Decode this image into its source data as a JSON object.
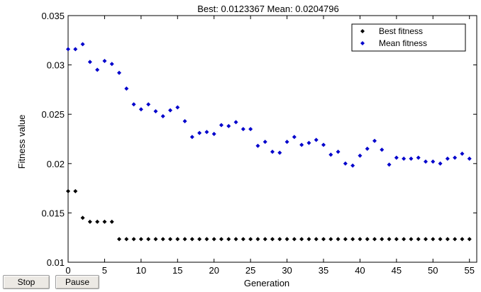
{
  "chart_data": {
    "type": "scatter",
    "title": "Best: 0.0123367 Mean: 0.0204796",
    "xlabel": "Generation",
    "ylabel": "Fitness value",
    "xlim": [
      0,
      56
    ],
    "ylim": [
      0.01,
      0.035
    ],
    "x_ticks": [
      0,
      5,
      10,
      15,
      20,
      25,
      30,
      35,
      40,
      45,
      50,
      55
    ],
    "y_ticks": [
      0.01,
      0.015,
      0.02,
      0.025,
      0.03,
      0.035
    ],
    "y_tick_labels": [
      "0.01",
      "0.015",
      "0.02",
      "0.025",
      "0.03",
      "0.035"
    ],
    "grid": false,
    "legend_position": "top-right",
    "series": [
      {
        "name": "Best fitness",
        "color": "#000000",
        "x": [
          0,
          1,
          2,
          3,
          4,
          5,
          6,
          7,
          8,
          9,
          10,
          11,
          12,
          13,
          14,
          15,
          16,
          17,
          18,
          19,
          20,
          21,
          22,
          23,
          24,
          25,
          26,
          27,
          28,
          29,
          30,
          31,
          32,
          33,
          34,
          35,
          36,
          37,
          38,
          39,
          40,
          41,
          42,
          43,
          44,
          45,
          46,
          47,
          48,
          49,
          50,
          51,
          52,
          53,
          54,
          55
        ],
        "values": [
          0.0172,
          0.0172,
          0.0145,
          0.0141,
          0.0141,
          0.0141,
          0.0141,
          0.01234,
          0.01234,
          0.01234,
          0.01234,
          0.01234,
          0.01234,
          0.01234,
          0.01234,
          0.01234,
          0.01234,
          0.01234,
          0.01234,
          0.01234,
          0.01234,
          0.01234,
          0.01234,
          0.01234,
          0.01234,
          0.01234,
          0.01234,
          0.01234,
          0.01234,
          0.01234,
          0.01234,
          0.01234,
          0.01234,
          0.01234,
          0.01234,
          0.01234,
          0.01234,
          0.01234,
          0.01234,
          0.01234,
          0.01234,
          0.01234,
          0.01234,
          0.01234,
          0.01234,
          0.01234,
          0.01234,
          0.01234,
          0.01234,
          0.01234,
          0.01234,
          0.01234,
          0.01234,
          0.01234,
          0.01234,
          0.01234
        ]
      },
      {
        "name": "Mean fitness",
        "color": "#0000cc",
        "x": [
          0,
          1,
          2,
          3,
          4,
          5,
          6,
          7,
          8,
          9,
          10,
          11,
          12,
          13,
          14,
          15,
          16,
          17,
          18,
          19,
          20,
          21,
          22,
          23,
          24,
          25,
          26,
          27,
          28,
          29,
          30,
          31,
          32,
          33,
          34,
          35,
          36,
          37,
          38,
          39,
          40,
          41,
          42,
          43,
          44,
          45,
          46,
          47,
          48,
          49,
          50,
          51,
          52,
          53,
          54,
          55
        ],
        "values": [
          0.0316,
          0.0316,
          0.0321,
          0.0303,
          0.0295,
          0.0304,
          0.0301,
          0.0292,
          0.0276,
          0.026,
          0.0255,
          0.026,
          0.0253,
          0.0248,
          0.0254,
          0.0257,
          0.0243,
          0.0227,
          0.0231,
          0.0232,
          0.023,
          0.0239,
          0.0238,
          0.0242,
          0.0235,
          0.0235,
          0.0218,
          0.0222,
          0.0212,
          0.0211,
          0.0222,
          0.0227,
          0.0219,
          0.0221,
          0.0224,
          0.0219,
          0.0209,
          0.0212,
          0.02,
          0.0198,
          0.0208,
          0.0215,
          0.0223,
          0.0214,
          0.0199,
          0.0206,
          0.0205,
          0.0205,
          0.0206,
          0.0202,
          0.0202,
          0.02,
          0.0205,
          0.0206,
          0.021,
          0.0205
        ]
      }
    ]
  },
  "controls": {
    "stop_label": "Stop",
    "pause_label": "Pause"
  }
}
